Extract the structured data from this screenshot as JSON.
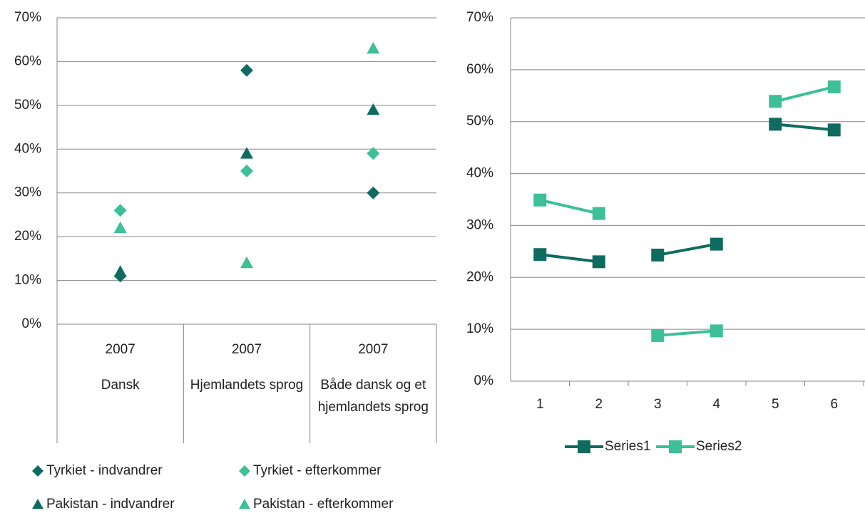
{
  "chart_data": [
    {
      "type": "scatter",
      "categories": [
        "2007",
        "2007",
        "2007"
      ],
      "subcategories": [
        "Dansk",
        "Hjemlandets sprog",
        "Både dansk og et hjemlandets sprog"
      ],
      "series": [
        {
          "name": "Tyrkiet - indvandrer",
          "color": "#0f6b60",
          "marker": "diamond",
          "values": [
            11,
            58,
            30
          ]
        },
        {
          "name": "Tyrkiet - efterkommer",
          "color": "#3dbf97",
          "marker": "diamond",
          "values": [
            26,
            35,
            39
          ]
        },
        {
          "name": "Pakistan - indvandrer",
          "color": "#0f6b60",
          "marker": "triangle",
          "values": [
            12,
            39,
            49
          ]
        },
        {
          "name": "Pakistan - efterkommer",
          "color": "#3dbf97",
          "marker": "triangle",
          "values": [
            22,
            14,
            63
          ]
        }
      ],
      "ylim": [
        0,
        70
      ],
      "yticks": [
        {
          "value": 0,
          "label": "0%"
        },
        {
          "value": 10,
          "label": "10%"
        },
        {
          "value": 20,
          "label": "20%"
        },
        {
          "value": 30,
          "label": "30%"
        },
        {
          "value": 40,
          "label": "40%"
        },
        {
          "value": 50,
          "label": "50%"
        },
        {
          "value": 60,
          "label": "60%"
        },
        {
          "value": 70,
          "label": "70%"
        }
      ],
      "grid": true,
      "legend": "bottom"
    },
    {
      "type": "line",
      "categories": [
        1,
        2,
        3,
        4,
        5,
        6
      ],
      "breaks": [
        2,
        4
      ],
      "series": [
        {
          "name": "Series1",
          "color": "#0f6b60",
          "values": [
            24.4,
            23.0,
            24.3,
            26.4,
            49.5,
            48.4
          ]
        },
        {
          "name": "Series2",
          "color": "#3dbf97",
          "values": [
            34.9,
            32.3,
            8.8,
            9.7,
            53.9,
            56.7
          ]
        }
      ],
      "ylim": [
        0,
        70
      ],
      "yticks": [
        {
          "value": 0,
          "label": "0%"
        },
        {
          "value": 10,
          "label": "10%"
        },
        {
          "value": 20,
          "label": "20%"
        },
        {
          "value": 30,
          "label": "30%"
        },
        {
          "value": 40,
          "label": "40%"
        },
        {
          "value": 50,
          "label": "50%"
        },
        {
          "value": 60,
          "label": "60%"
        },
        {
          "value": 70,
          "label": "70%"
        }
      ],
      "grid": true,
      "legend": "bottom"
    }
  ]
}
